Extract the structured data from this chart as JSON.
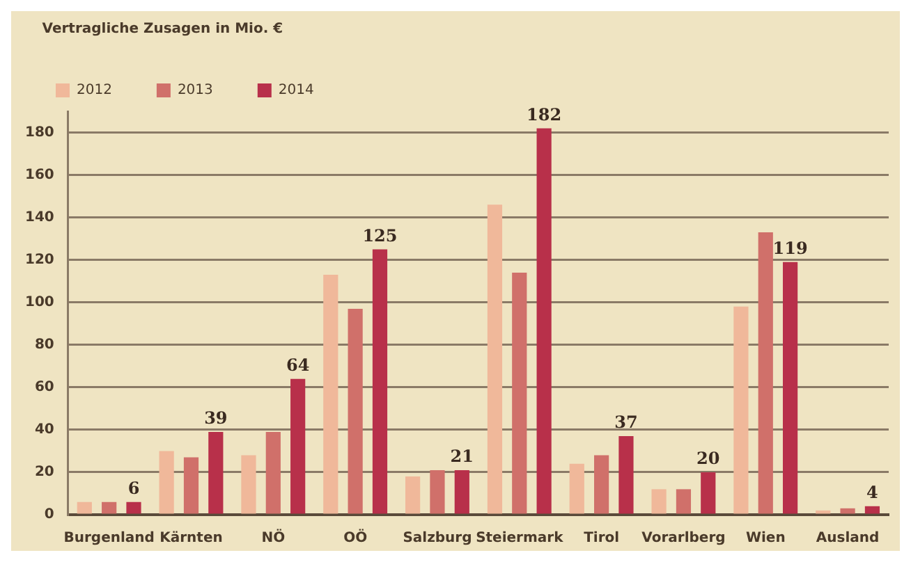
{
  "chart_data": {
    "type": "bar",
    "legend_title": "Vertragliche Zusagen in Mio. €",
    "categories": [
      "Burgenland",
      "Kärnten",
      "NÖ",
      "OÖ",
      "Salzburg",
      "Steiermark",
      "Tirol",
      "Vorarlberg",
      "Wien",
      "Ausland"
    ],
    "series": [
      {
        "name": "2012",
        "color": "#f0b89a",
        "values": [
          6,
          30,
          28,
          113,
          18,
          146,
          24,
          12,
          98,
          2
        ]
      },
      {
        "name": "2013",
        "color": "#d0706a",
        "values": [
          6,
          27,
          39,
          97,
          21,
          114,
          28,
          12,
          133,
          3
        ]
      },
      {
        "name": "2014",
        "color": "#b8304a",
        "values": [
          6,
          39,
          64,
          125,
          21,
          182,
          37,
          20,
          119,
          4
        ],
        "value_labels": [
          "6",
          "39",
          "64",
          "125",
          "21",
          "182",
          "37",
          "20",
          "119",
          "4"
        ]
      }
    ],
    "ylim": [
      0,
      190
    ],
    "yticks": [
      0,
      20,
      40,
      60,
      80,
      100,
      120,
      140,
      160,
      180
    ],
    "grid": "y",
    "legend": "top left"
  }
}
